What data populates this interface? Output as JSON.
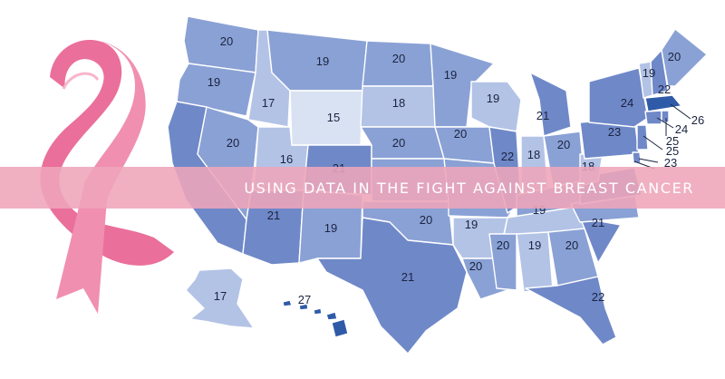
{
  "banner": {
    "title": "USING DATA IN THE FIGHT AGAINST BREAST CANCER"
  },
  "icons": {
    "ribbon": "pink-ribbon-icon"
  },
  "colors": {
    "light": "#d9e2f3",
    "mid_light": "#b3c3e6",
    "mid": "#8aa1d5",
    "dark": "#6f88c8",
    "darkest": "#2f5aa8",
    "banner": "#eea5b9",
    "ribbon": "#ea6f9a"
  },
  "states": [
    {
      "code": "WA",
      "value": "20",
      "shade": "mid"
    },
    {
      "code": "OR",
      "value": "19",
      "shade": "mid"
    },
    {
      "code": "CA",
      "value": "",
      "shade": "dark"
    },
    {
      "code": "ID",
      "value": "17",
      "shade": "mid_light"
    },
    {
      "code": "NV",
      "value": "20",
      "shade": "mid"
    },
    {
      "code": "UT",
      "value": "16",
      "shade": "mid_light"
    },
    {
      "code": "AZ",
      "value": "21",
      "shade": "dark"
    },
    {
      "code": "MT",
      "value": "19",
      "shade": "mid"
    },
    {
      "code": "WY",
      "value": "15",
      "shade": "light"
    },
    {
      "code": "CO",
      "value": "21",
      "shade": "dark"
    },
    {
      "code": "NM",
      "value": "19",
      "shade": "mid"
    },
    {
      "code": "ND",
      "value": "20",
      "shade": "mid"
    },
    {
      "code": "SD",
      "value": "18",
      "shade": "mid_light"
    },
    {
      "code": "NE",
      "value": "20",
      "shade": "mid"
    },
    {
      "code": "KS",
      "value": "",
      "shade": "mid"
    },
    {
      "code": "OK",
      "value": "20",
      "shade": "mid"
    },
    {
      "code": "TX",
      "value": "21",
      "shade": "dark"
    },
    {
      "code": "MN",
      "value": "19",
      "shade": "mid"
    },
    {
      "code": "IA",
      "value": "20",
      "shade": "mid"
    },
    {
      "code": "MO",
      "value": "",
      "shade": "mid"
    },
    {
      "code": "AR",
      "value": "19",
      "shade": "mid_light"
    },
    {
      "code": "LA",
      "value": "20",
      "shade": "mid"
    },
    {
      "code": "WI",
      "value": "19",
      "shade": "mid_light"
    },
    {
      "code": "IL",
      "value": "22",
      "shade": "dark"
    },
    {
      "code": "MI",
      "value": "21",
      "shade": "dark"
    },
    {
      "code": "IN",
      "value": "18",
      "shade": "mid_light"
    },
    {
      "code": "OH",
      "value": "20",
      "shade": "mid"
    },
    {
      "code": "KY",
      "value": "",
      "shade": "mid"
    },
    {
      "code": "TN",
      "value": "19",
      "shade": "mid_light"
    },
    {
      "code": "MS",
      "value": "20",
      "shade": "mid"
    },
    {
      "code": "AL",
      "value": "19",
      "shade": "mid_light"
    },
    {
      "code": "GA",
      "value": "20",
      "shade": "mid"
    },
    {
      "code": "FL",
      "value": "22",
      "shade": "dark"
    },
    {
      "code": "SC",
      "value": "21",
      "shade": "dark"
    },
    {
      "code": "NC",
      "value": "",
      "shade": "mid"
    },
    {
      "code": "VA",
      "value": "",
      "shade": "dark"
    },
    {
      "code": "WV",
      "value": "18",
      "shade": "mid_light"
    },
    {
      "code": "PA",
      "value": "23",
      "shade": "dark"
    },
    {
      "code": "NY",
      "value": "24",
      "shade": "dark"
    },
    {
      "code": "VT",
      "value": "19",
      "shade": "mid_light"
    },
    {
      "code": "NH",
      "value": "22",
      "shade": "dark"
    },
    {
      "code": "ME",
      "value": "20",
      "shade": "mid"
    },
    {
      "code": "MA",
      "value": "26",
      "shade": "darkest"
    },
    {
      "code": "CT",
      "value": "24",
      "shade": "dark"
    },
    {
      "code": "RI",
      "value": "25",
      "shade": "dark"
    },
    {
      "code": "NJ",
      "value": "25",
      "shade": "dark"
    },
    {
      "code": "DE",
      "value": "23",
      "shade": "dark"
    },
    {
      "code": "AK",
      "value": "17",
      "shade": "mid_light"
    },
    {
      "code": "HI",
      "value": "27",
      "shade": "darkest"
    }
  ]
}
